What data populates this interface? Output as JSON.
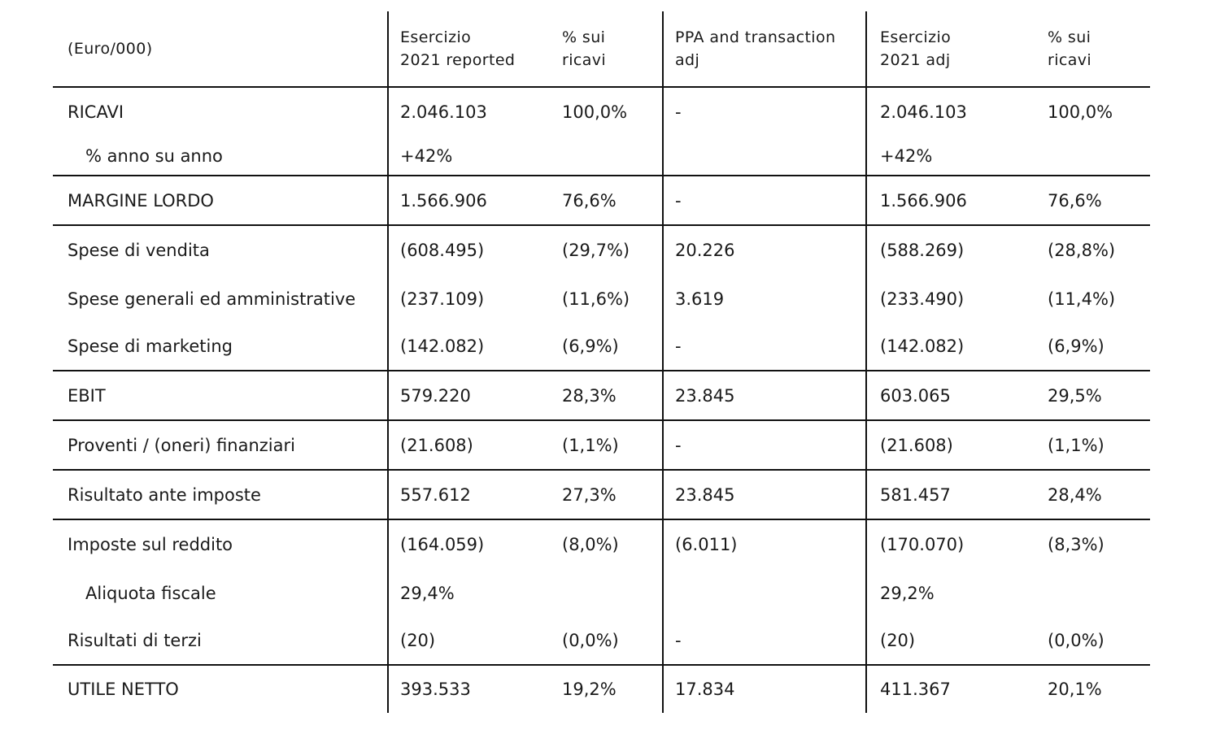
{
  "table": {
    "headers": {
      "label": "(Euro/000)",
      "reported": [
        "Esercizio",
        "2021 reported"
      ],
      "pct_reported": [
        "% sui",
        "ricavi"
      ],
      "adj": [
        "PPA and transaction",
        "adj"
      ],
      "adjusted": [
        "Esercizio",
        "2021 adj"
      ],
      "pct_adjusted": [
        "% sui",
        "ricavi"
      ]
    },
    "rows": [
      {
        "label": "RICAVI",
        "reported": "2.046.103",
        "pct_reported": "100,0%",
        "adj": "-",
        "adjusted": "2.046.103",
        "pct_adjusted": "100,0%"
      },
      {
        "label": "% anno su anno",
        "reported": "+42%",
        "pct_reported": "",
        "adj": "",
        "adjusted": "+42%",
        "pct_adjusted": ""
      },
      {
        "label": "MARGINE LORDO",
        "reported": "1.566.906",
        "pct_reported": "76,6%",
        "adj": "-",
        "adjusted": "1.566.906",
        "pct_adjusted": "76,6%"
      },
      {
        "label": "Spese di vendita",
        "reported": "(608.495)",
        "pct_reported": "(29,7%)",
        "adj": "20.226",
        "adjusted": "(588.269)",
        "pct_adjusted": "(28,8%)"
      },
      {
        "label": "Spese generali ed amministrative",
        "reported": "(237.109)",
        "pct_reported": "(11,6%)",
        "adj": "3.619",
        "adjusted": "(233.490)",
        "pct_adjusted": "(11,4%)"
      },
      {
        "label": "Spese di marketing",
        "reported": "(142.082)",
        "pct_reported": "(6,9%)",
        "adj": "-",
        "adjusted": "(142.082)",
        "pct_adjusted": "(6,9%)"
      },
      {
        "label": "EBIT",
        "reported": "579.220",
        "pct_reported": "28,3%",
        "adj": "23.845",
        "adjusted": "603.065",
        "pct_adjusted": "29,5%"
      },
      {
        "label": "Proventi / (oneri) finanziari",
        "reported": "(21.608)",
        "pct_reported": "(1,1%)",
        "adj": "-",
        "adjusted": "(21.608)",
        "pct_adjusted": "(1,1%)"
      },
      {
        "label": "Risultato ante imposte",
        "reported": "557.612",
        "pct_reported": "27,3%",
        "adj": "23.845",
        "adjusted": "581.457",
        "pct_adjusted": "28,4%"
      },
      {
        "label": "Imposte sul reddito",
        "reported": "(164.059)",
        "pct_reported": "(8,0%)",
        "adj": "(6.011)",
        "adjusted": "(170.070)",
        "pct_adjusted": "(8,3%)"
      },
      {
        "label": "Aliquota fiscale",
        "reported": "29,4%",
        "pct_reported": "",
        "adj": "",
        "adjusted": "29,2%",
        "pct_adjusted": ""
      },
      {
        "label": "Risultati di terzi",
        "reported": "(20)",
        "pct_reported": "(0,0%)",
        "adj": "-",
        "adjusted": "(20)",
        "pct_adjusted": "(0,0%)"
      },
      {
        "label": "UTILE NETTO",
        "reported": "393.533",
        "pct_reported": "19,2%",
        "adj": "17.834",
        "adjusted": "411.367",
        "pct_adjusted": "20,1%"
      }
    ]
  }
}
